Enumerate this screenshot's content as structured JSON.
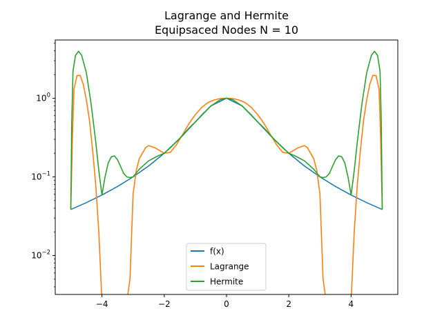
{
  "chart_data": {
    "type": "line",
    "title": "Lagrange and Hermite",
    "subtitle": "Equipsaced Nodes N = 10",
    "xlabel": "",
    "ylabel": "",
    "xlim": [
      -5.5,
      5.5
    ],
    "ylim": [
      0.0032,
      5.5
    ],
    "yscale": "log",
    "grid": false,
    "legend_position": "lower center",
    "x_ticks": [
      -4,
      -2,
      0,
      2,
      4
    ],
    "x_tick_labels": [
      "−4",
      "−2",
      "0",
      "2",
      "4"
    ],
    "y_ticks": [
      0.01,
      0.1,
      1
    ],
    "y_tick_labels": [
      "10",
      "10",
      "10"
    ],
    "y_tick_exponents": [
      "−2",
      "−1",
      "0"
    ],
    "series": [
      {
        "name": "f(x)",
        "color": "#1f77b4",
        "x": [
          -5,
          -4.5,
          -4,
          -3.5,
          -3,
          -2.5,
          -2,
          -1.5,
          -1,
          -0.5,
          0,
          0.5,
          1,
          1.5,
          2,
          2.5,
          3,
          3.5,
          4,
          4.5,
          5
        ],
        "y": [
          0.0385,
          0.0471,
          0.0588,
          0.0755,
          0.1,
          0.1379,
          0.2,
          0.3077,
          0.5,
          0.8,
          1.0,
          0.8,
          0.5,
          0.3077,
          0.2,
          0.1379,
          0.1,
          0.0755,
          0.0588,
          0.0471,
          0.0385
        ]
      },
      {
        "name": "Lagrange",
        "color": "#ff7f0e",
        "x": [
          -5,
          -4.95,
          -4.9,
          -4.8,
          -4.7,
          -4.6,
          -4.5,
          -4.4,
          -4.3,
          -4.2,
          -4.1,
          -4.05,
          -4.0,
          -3.9,
          -3.8,
          -3.5,
          -3.3,
          -3.2,
          -3.1,
          -3.0,
          -2.9,
          -2.8,
          -2.6,
          -2.5,
          -2.3,
          -2.0,
          -1.8,
          -1.6,
          -1.4,
          -1.2,
          -1.0,
          -0.8,
          -0.6,
          -0.4,
          -0.2,
          0,
          0.2,
          0.4,
          0.6,
          0.8,
          1.0,
          1.2,
          1.4,
          1.6,
          1.8,
          2.0,
          2.3,
          2.5,
          2.6,
          2.8,
          2.9,
          3.0,
          3.1,
          3.2,
          3.3,
          3.5,
          3.8,
          3.9,
          4.0,
          4.05,
          4.1,
          4.2,
          4.3,
          4.4,
          4.5,
          4.6,
          4.7,
          4.8,
          4.9,
          4.95,
          5
        ],
        "y": [
          0.0385,
          0.3,
          1.3,
          1.95,
          1.95,
          1.5,
          0.95,
          0.52,
          0.22,
          0.08,
          0.02,
          0.007,
          null,
          null,
          null,
          null,
          null,
          null,
          0.005,
          0.06,
          0.12,
          0.17,
          0.235,
          0.25,
          0.235,
          0.2,
          0.205,
          0.26,
          0.35,
          0.48,
          0.62,
          0.76,
          0.88,
          0.95,
          0.99,
          1.0,
          0.99,
          0.95,
          0.88,
          0.76,
          0.62,
          0.48,
          0.35,
          0.26,
          0.205,
          0.2,
          0.235,
          0.25,
          0.235,
          0.17,
          0.12,
          0.06,
          0.005,
          null,
          null,
          null,
          null,
          null,
          null,
          0.007,
          0.02,
          0.08,
          0.22,
          0.52,
          0.95,
          1.5,
          1.95,
          1.95,
          1.3,
          0.3,
          0.0385
        ]
      },
      {
        "name": "Hermite",
        "color": "#2ca02c",
        "x": [
          -5,
          -4.97,
          -4.93,
          -4.85,
          -4.75,
          -4.65,
          -4.5,
          -4.35,
          -4.2,
          -4.1,
          -4.0,
          -3.9,
          -3.8,
          -3.7,
          -3.6,
          -3.5,
          -3.4,
          -3.3,
          -3.2,
          -3.1,
          -3.0,
          -2.8,
          -2.5,
          -2.2,
          -2.0,
          -1.8,
          -1.5,
          -1.2,
          -1.0,
          -0.8,
          -0.5,
          -0.2,
          0,
          0.2,
          0.5,
          0.8,
          1.0,
          1.2,
          1.5,
          1.8,
          2.0,
          2.2,
          2.5,
          2.8,
          3.0,
          3.1,
          3.2,
          3.3,
          3.4,
          3.5,
          3.6,
          3.7,
          3.8,
          3.9,
          4.0,
          4.1,
          4.2,
          4.35,
          4.5,
          4.65,
          4.75,
          4.85,
          4.93,
          4.97,
          5
        ],
        "y": [
          0.0385,
          0.5,
          2.2,
          3.5,
          3.95,
          3.5,
          2.1,
          0.85,
          0.28,
          0.12,
          0.0588,
          0.1,
          0.15,
          0.18,
          0.185,
          0.165,
          0.135,
          0.11,
          0.1,
          0.098,
          0.1,
          0.125,
          0.16,
          0.185,
          0.2,
          0.235,
          0.31,
          0.42,
          0.5,
          0.61,
          0.8,
          0.96,
          1.0,
          0.96,
          0.8,
          0.61,
          0.5,
          0.42,
          0.31,
          0.235,
          0.2,
          0.185,
          0.16,
          0.125,
          0.1,
          0.098,
          0.1,
          0.11,
          0.135,
          0.165,
          0.185,
          0.18,
          0.15,
          0.1,
          0.0588,
          0.12,
          0.28,
          0.85,
          2.1,
          3.5,
          3.95,
          3.5,
          2.2,
          0.5,
          0.0385
        ]
      }
    ]
  }
}
